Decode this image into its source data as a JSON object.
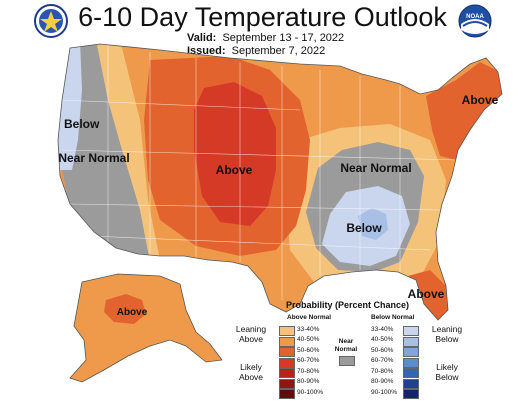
{
  "header": {
    "title": "6-10 Day Temperature Outlook",
    "valid_label": "Valid:",
    "valid_dates": "September 13 - 17, 2022",
    "issued_label": "Issued:",
    "issued_date": "September 7, 2022",
    "left_logo_icon": "doc-seal-icon",
    "right_logo_icon": "noaa-logo-icon"
  },
  "map_labels": {
    "below_west": "Below",
    "near_normal_west": "Near Normal",
    "above_central": "Above",
    "near_normal_east": "Near Normal",
    "below_east": "Below",
    "above_northeast": "Above",
    "above_florida": "Above",
    "above_alaska": "Above"
  },
  "legend": {
    "title": "Probability (Percent Chance)",
    "above_header": "Above Normal",
    "below_header": "Below Normal",
    "near_normal": "Near Normal",
    "leaning_above": "Leaning Above",
    "likely_above": "Likely Above",
    "leaning_below": "Leaning Below",
    "likely_below": "Likely Below",
    "ranges": [
      "33-40%",
      "40-50%",
      "50-60%",
      "60-70%",
      "70-80%",
      "80-90%",
      "90-100%"
    ],
    "above_colors": [
      "#F5C27A",
      "#EF9A4A",
      "#E3632F",
      "#D53A26",
      "#B8211E",
      "#8E1617",
      "#5E0C10"
    ],
    "below_colors": [
      "#C9D6EE",
      "#A8C0E6",
      "#7FA6DA",
      "#5B8DCC",
      "#3467B0",
      "#213F8C",
      "#14246A"
    ],
    "near_color": "#9B9B9B"
  }
}
